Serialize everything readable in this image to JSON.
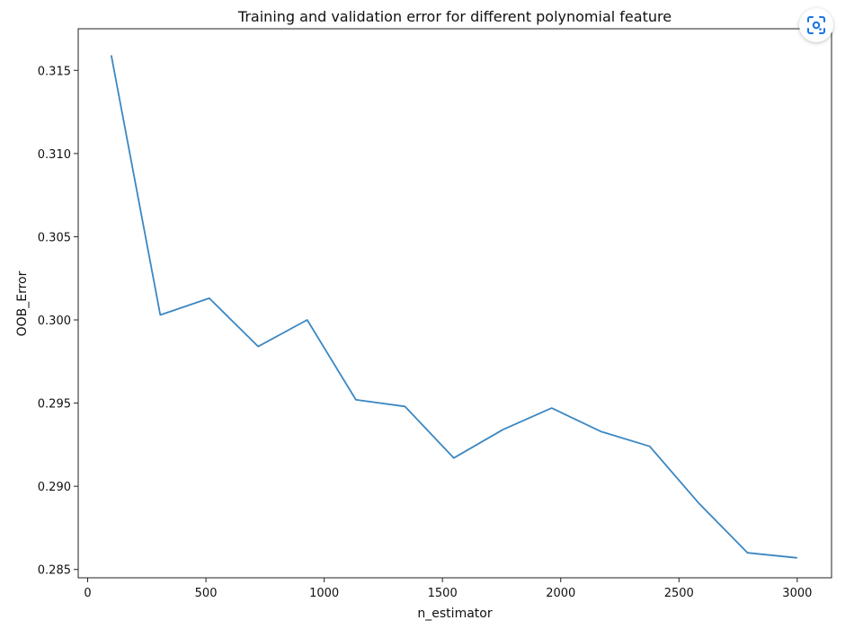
{
  "chart_data": {
    "type": "line",
    "title": "Training and validation error for different polynomial feature",
    "xlabel": "n_estimator",
    "ylabel": "OOB_Error",
    "xlim": [
      -40,
      3145
    ],
    "ylim": [
      0.2845,
      0.3175
    ],
    "xticks": [
      0,
      500,
      1000,
      1500,
      2000,
      2500,
      3000
    ],
    "xtick_labels": [
      "0",
      "500",
      "1000",
      "1500",
      "2000",
      "2500",
      "3000"
    ],
    "yticks": [
      0.285,
      0.29,
      0.295,
      0.3,
      0.305,
      0.31,
      0.315
    ],
    "ytick_labels": [
      "0.285",
      "0.290",
      "0.295",
      "0.300",
      "0.305",
      "0.310",
      "0.315"
    ],
    "grid": false,
    "series": [
      {
        "color": "#3b87c2",
        "x": [
          100,
          307,
          514,
          721,
          928,
          1134,
          1341,
          1548,
          1755,
          1962,
          2169,
          2376,
          2583,
          2790,
          3000
        ],
        "y": [
          0.3159,
          0.3003,
          0.3013,
          0.2984,
          0.3,
          0.2952,
          0.2948,
          0.2917,
          0.2934,
          0.2947,
          0.2933,
          0.2924,
          0.289,
          0.286,
          0.2857
        ]
      }
    ]
  },
  "overlay": {
    "icon": "lens-scan-icon",
    "accent": "#1a73e8"
  }
}
